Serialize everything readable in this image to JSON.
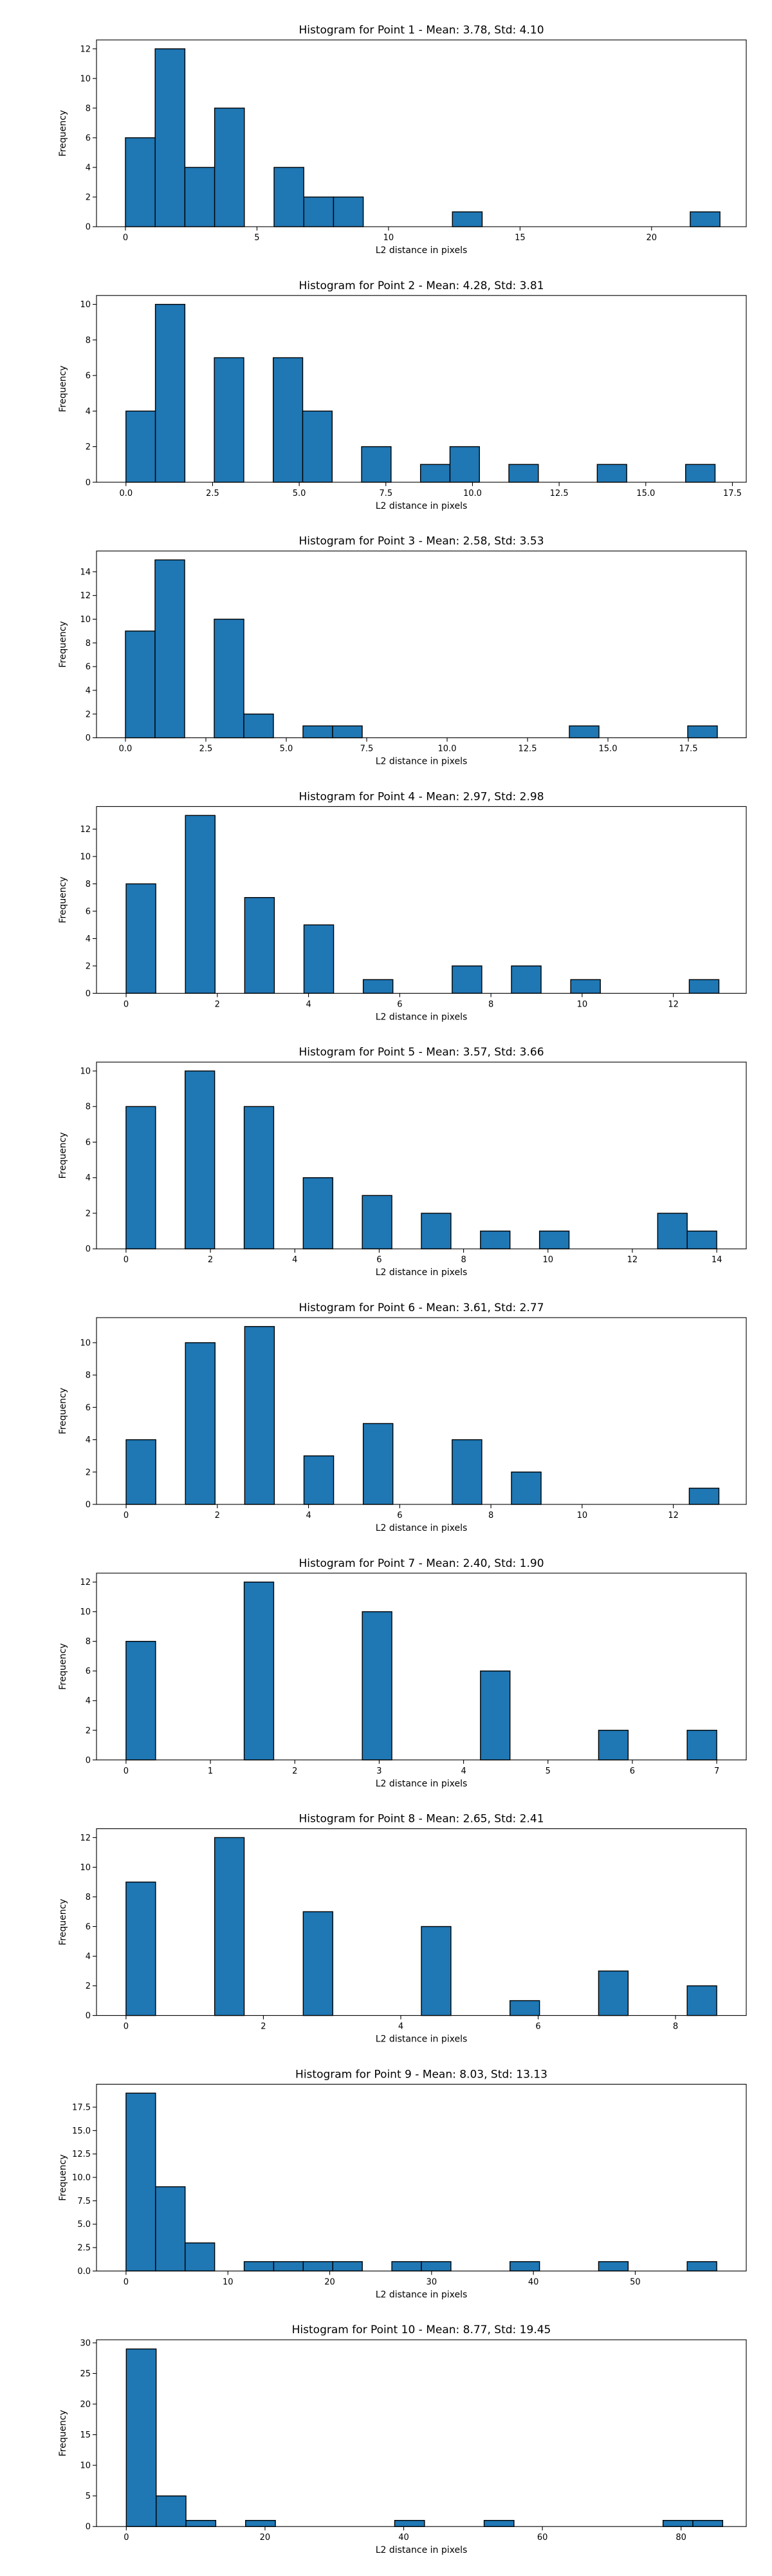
{
  "chart_data": [
    {
      "type": "bar",
      "title": "Histogram for Point 1 - Mean: 3.78, Std: 4.10",
      "xlabel": "L2 distance in pixels",
      "ylabel": "Frequency",
      "xlim": [
        -1.1,
        23.6
      ],
      "ylim": [
        0,
        12.6
      ],
      "xticks": [
        0,
        5,
        10,
        15,
        20
      ],
      "xtick_labels": [
        "0",
        "5",
        "10",
        "15",
        "20"
      ],
      "yticks": [
        0,
        2,
        4,
        6,
        8,
        10,
        12
      ],
      "ytick_labels": [
        "0",
        "2",
        "4",
        "6",
        "8",
        "10",
        "12"
      ],
      "bins": [
        [
          0.0,
          1.13,
          6
        ],
        [
          1.13,
          2.26,
          12
        ],
        [
          2.26,
          3.39,
          4
        ],
        [
          3.39,
          4.52,
          8
        ],
        [
          5.65,
          6.78,
          4
        ],
        [
          6.78,
          7.91,
          2
        ],
        [
          7.91,
          9.04,
          2
        ],
        [
          12.43,
          13.56,
          1
        ],
        [
          21.47,
          22.6,
          1
        ]
      ]
    },
    {
      "type": "bar",
      "title": "Histogram for Point 2 - Mean: 4.28, Std: 3.81",
      "xlabel": "L2 distance in pixels",
      "ylabel": "Frequency",
      "xlim": [
        -0.85,
        17.9
      ],
      "ylim": [
        0,
        10.5
      ],
      "xticks": [
        0,
        2.5,
        5,
        7.5,
        10,
        12.5,
        15,
        17.5
      ],
      "xtick_labels": [
        "0.0",
        "2.5",
        "5.0",
        "7.5",
        "10.0",
        "12.5",
        "15.0",
        "17.5"
      ],
      "yticks": [
        0,
        2,
        4,
        6,
        8,
        10
      ],
      "ytick_labels": [
        "0",
        "2",
        "4",
        "6",
        "8",
        "10"
      ],
      "bins": [
        [
          0.0,
          0.85,
          4
        ],
        [
          0.85,
          1.7,
          10
        ],
        [
          2.55,
          3.4,
          7
        ],
        [
          4.25,
          5.1,
          7
        ],
        [
          5.1,
          5.95,
          4
        ],
        [
          6.8,
          7.65,
          2
        ],
        [
          8.5,
          9.35,
          1
        ],
        [
          9.35,
          10.2,
          2
        ],
        [
          11.05,
          11.9,
          1
        ],
        [
          13.6,
          14.45,
          1
        ],
        [
          16.15,
          17.0,
          1
        ]
      ]
    },
    {
      "type": "bar",
      "title": "Histogram for Point 3 - Mean: 2.58, Std: 3.53",
      "xlabel": "L2 distance in pixels",
      "ylabel": "Frequency",
      "xlim": [
        -0.9,
        19.3
      ],
      "ylim": [
        0,
        15.75
      ],
      "xticks": [
        0,
        2.5,
        5,
        7.5,
        10,
        12.5,
        15,
        17.5
      ],
      "xtick_labels": [
        "0.0",
        "2.5",
        "5.0",
        "7.5",
        "10.0",
        "12.5",
        "15.0",
        "17.5"
      ],
      "yticks": [
        0,
        2,
        4,
        6,
        8,
        10,
        12,
        14
      ],
      "ytick_labels": [
        "0",
        "2",
        "4",
        "6",
        "8",
        "10",
        "12",
        "14"
      ],
      "bins": [
        [
          0.0,
          0.92,
          9
        ],
        [
          0.92,
          1.84,
          15
        ],
        [
          2.76,
          3.68,
          10
        ],
        [
          3.68,
          4.6,
          2
        ],
        [
          5.52,
          6.44,
          1
        ],
        [
          6.44,
          7.36,
          1
        ],
        [
          13.8,
          14.72,
          1
        ],
        [
          17.48,
          18.4,
          1
        ]
      ]
    },
    {
      "type": "bar",
      "title": "Histogram for Point 4 - Mean: 2.97, Std: 2.98",
      "xlabel": "L2 distance in pixels",
      "ylabel": "Frequency",
      "xlim": [
        -0.65,
        13.6
      ],
      "ylim": [
        0,
        13.65
      ],
      "xticks": [
        0,
        2,
        4,
        6,
        8,
        10,
        12
      ],
      "xtick_labels": [
        "0",
        "2",
        "4",
        "6",
        "8",
        "10",
        "12"
      ],
      "yticks": [
        0,
        2,
        4,
        6,
        8,
        10,
        12
      ],
      "ytick_labels": [
        "0",
        "2",
        "4",
        "6",
        "8",
        "10",
        "12"
      ],
      "bins": [
        [
          0.0,
          0.65,
          8
        ],
        [
          1.3,
          1.95,
          13
        ],
        [
          2.6,
          3.25,
          7
        ],
        [
          3.9,
          4.55,
          5
        ],
        [
          5.2,
          5.85,
          1
        ],
        [
          7.15,
          7.8,
          2
        ],
        [
          8.45,
          9.1,
          2
        ],
        [
          9.75,
          10.4,
          1
        ],
        [
          12.35,
          13.0,
          1
        ]
      ]
    },
    {
      "type": "bar",
      "title": "Histogram for Point 5 - Mean: 3.57, Std: 3.66",
      "xlabel": "L2 distance in pixels",
      "ylabel": "Frequency",
      "xlim": [
        -0.7,
        14.7
      ],
      "ylim": [
        0,
        10.5
      ],
      "xticks": [
        0,
        2,
        4,
        6,
        8,
        10,
        12,
        14
      ],
      "xtick_labels": [
        "0",
        "2",
        "4",
        "6",
        "8",
        "10",
        "12",
        "14"
      ],
      "yticks": [
        0,
        2,
        4,
        6,
        8,
        10
      ],
      "ytick_labels": [
        "0",
        "2",
        "4",
        "6",
        "8",
        "10"
      ],
      "bins": [
        [
          0.0,
          0.7,
          8
        ],
        [
          1.4,
          2.1,
          10
        ],
        [
          2.8,
          3.5,
          8
        ],
        [
          4.2,
          4.9,
          4
        ],
        [
          5.6,
          6.3,
          3
        ],
        [
          7.0,
          7.7,
          2
        ],
        [
          8.4,
          9.1,
          1
        ],
        [
          9.8,
          10.5,
          1
        ],
        [
          12.6,
          13.3,
          2
        ],
        [
          13.3,
          14.0,
          1
        ]
      ]
    },
    {
      "type": "bar",
      "title": "Histogram for Point 6 - Mean: 3.61, Std: 2.77",
      "xlabel": "L2 distance in pixels",
      "ylabel": "Frequency",
      "xlim": [
        -0.65,
        13.6
      ],
      "ylim": [
        0,
        11.55
      ],
      "xticks": [
        0,
        2,
        4,
        6,
        8,
        10,
        12
      ],
      "xtick_labels": [
        "0",
        "2",
        "4",
        "6",
        "8",
        "10",
        "12"
      ],
      "yticks": [
        0,
        2,
        4,
        6,
        8,
        10
      ],
      "ytick_labels": [
        "0",
        "2",
        "4",
        "6",
        "8",
        "10"
      ],
      "bins": [
        [
          0.0,
          0.65,
          4
        ],
        [
          1.3,
          1.95,
          10
        ],
        [
          2.6,
          3.25,
          11
        ],
        [
          3.9,
          4.55,
          3
        ],
        [
          5.2,
          5.85,
          5
        ],
        [
          7.15,
          7.8,
          4
        ],
        [
          8.45,
          9.1,
          2
        ],
        [
          12.35,
          13.0,
          1
        ]
      ]
    },
    {
      "type": "bar",
      "title": "Histogram for Point 7 - Mean: 2.40, Std: 1.90",
      "xlabel": "L2 distance in pixels",
      "ylabel": "Frequency",
      "xlim": [
        -0.35,
        7.35
      ],
      "ylim": [
        0,
        12.6
      ],
      "xticks": [
        0,
        1,
        2,
        3,
        4,
        5,
        6,
        7
      ],
      "xtick_labels": [
        "0",
        "1",
        "2",
        "3",
        "4",
        "5",
        "6",
        "7"
      ],
      "yticks": [
        0,
        2,
        4,
        6,
        8,
        10,
        12
      ],
      "ytick_labels": [
        "0",
        "2",
        "4",
        "6",
        "8",
        "10",
        "12"
      ],
      "bins": [
        [
          0.0,
          0.35,
          8
        ],
        [
          1.4,
          1.75,
          12
        ],
        [
          2.8,
          3.15,
          10
        ],
        [
          4.2,
          4.55,
          6
        ],
        [
          5.6,
          5.95,
          2
        ],
        [
          6.65,
          7.0,
          2
        ]
      ]
    },
    {
      "type": "bar",
      "title": "Histogram for Point 8 - Mean: 2.65, Std: 2.41",
      "xlabel": "L2 distance in pixels",
      "ylabel": "Frequency",
      "xlim": [
        -0.43,
        9.03
      ],
      "ylim": [
        0,
        12.6
      ],
      "xticks": [
        0,
        2,
        4,
        6,
        8
      ],
      "xtick_labels": [
        "0",
        "2",
        "4",
        "6",
        "8"
      ],
      "yticks": [
        0,
        2,
        4,
        6,
        8,
        10,
        12
      ],
      "ytick_labels": [
        "0",
        "2",
        "4",
        "6",
        "8",
        "10",
        "12"
      ],
      "bins": [
        [
          0.0,
          0.43,
          9
        ],
        [
          1.29,
          1.72,
          12
        ],
        [
          2.58,
          3.01,
          7
        ],
        [
          4.3,
          4.73,
          6
        ],
        [
          5.59,
          6.02,
          1
        ],
        [
          6.88,
          7.31,
          3
        ],
        [
          8.17,
          8.6,
          2
        ]
      ]
    },
    {
      "type": "bar",
      "title": "Histogram for Point 9 - Mean: 8.03, Std: 13.13",
      "xlabel": "L2 distance in pixels",
      "ylabel": "Frequency",
      "xlim": [
        -2.9,
        60.9
      ],
      "ylim": [
        0,
        19.95
      ],
      "xticks": [
        0,
        10,
        20,
        30,
        40,
        50
      ],
      "xtick_labels": [
        "0",
        "10",
        "20",
        "30",
        "40",
        "50"
      ],
      "yticks": [
        0,
        2.5,
        5,
        7.5,
        10,
        12.5,
        15,
        17.5
      ],
      "ytick_labels": [
        "0.0",
        "2.5",
        "5.0",
        "7.5",
        "10.0",
        "12.5",
        "15.0",
        "17.5"
      ],
      "bins": [
        [
          0.0,
          2.9,
          19
        ],
        [
          2.9,
          5.8,
          9
        ],
        [
          5.8,
          8.7,
          3
        ],
        [
          11.6,
          14.5,
          1
        ],
        [
          14.5,
          17.4,
          1
        ],
        [
          17.4,
          20.3,
          1
        ],
        [
          20.3,
          23.2,
          1
        ],
        [
          26.1,
          29.0,
          1
        ],
        [
          29.0,
          31.9,
          1
        ],
        [
          37.7,
          40.6,
          1
        ],
        [
          46.4,
          49.3,
          1
        ],
        [
          55.1,
          58.0,
          1
        ]
      ]
    },
    {
      "type": "bar",
      "title": "Histogram for Point 10 - Mean: 8.77, Std: 19.45",
      "xlabel": "L2 distance in pixels",
      "ylabel": "Frequency",
      "xlim": [
        -4.3,
        89.4
      ],
      "ylim": [
        0,
        30.5
      ],
      "xticks": [
        0,
        20,
        40,
        60,
        80
      ],
      "xtick_labels": [
        "0",
        "20",
        "40",
        "60",
        "80"
      ],
      "yticks": [
        0,
        5,
        10,
        15,
        20,
        25,
        30
      ],
      "ytick_labels": [
        "0",
        "5",
        "10",
        "15",
        "20",
        "25",
        "30"
      ],
      "bins": [
        [
          0.0,
          4.3,
          29
        ],
        [
          4.3,
          8.6,
          5
        ],
        [
          8.6,
          12.9,
          1
        ],
        [
          17.2,
          21.5,
          1
        ],
        [
          38.7,
          43.0,
          1
        ],
        [
          51.6,
          55.9,
          1
        ],
        [
          77.4,
          81.7,
          1
        ],
        [
          81.7,
          86.0,
          1
        ]
      ]
    }
  ],
  "colors": {
    "bar_fill": "#1f77b4",
    "bar_edge": "#000000",
    "background": "#ffffff"
  }
}
